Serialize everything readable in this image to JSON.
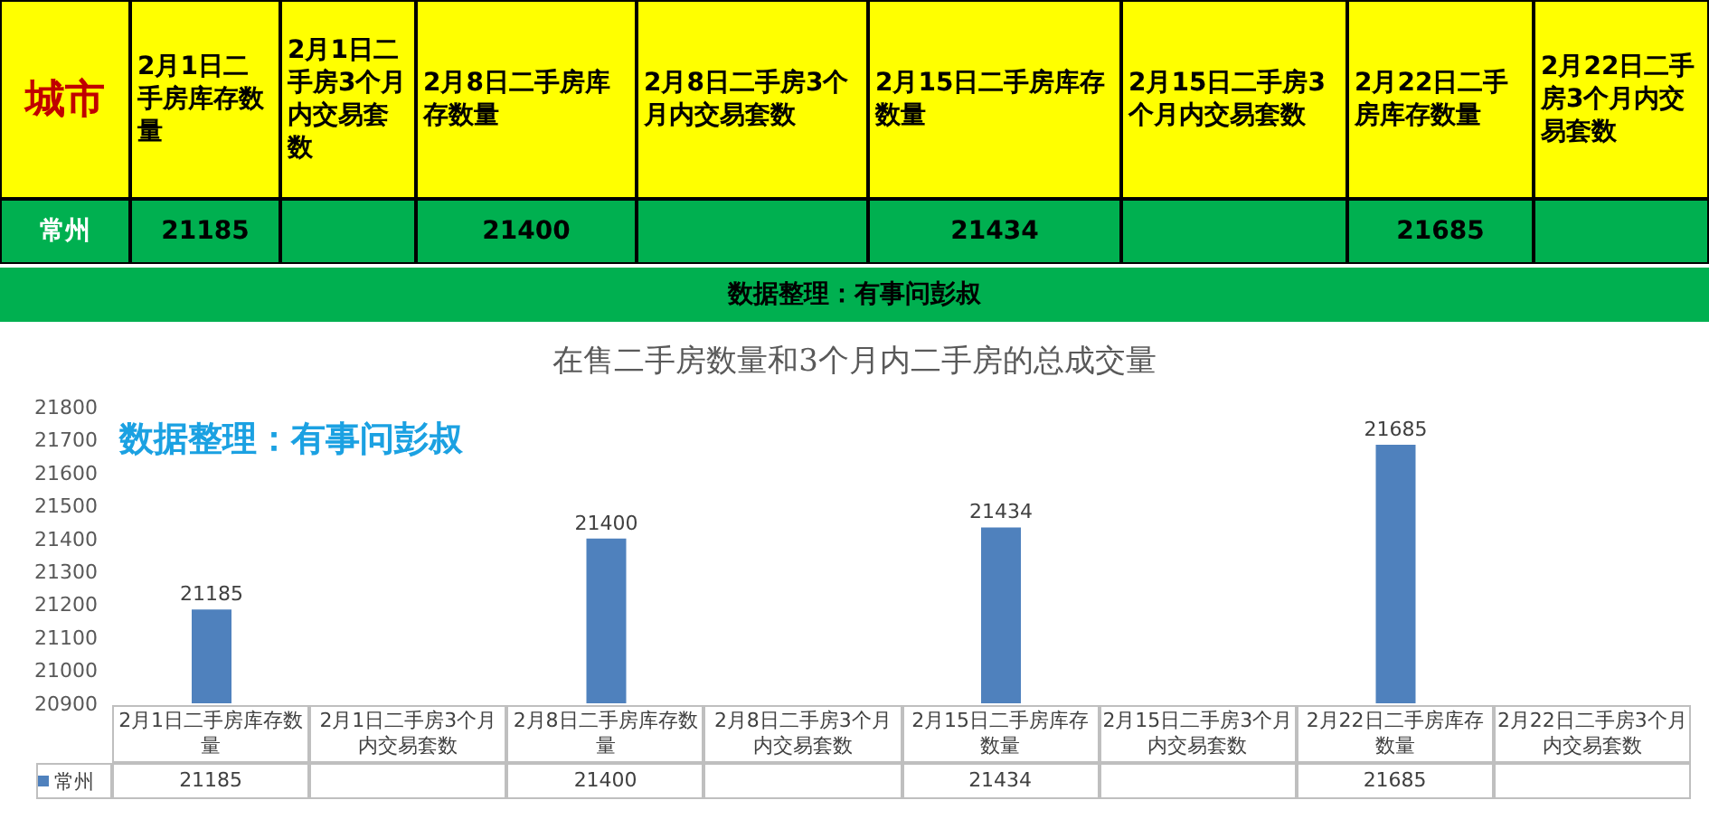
{
  "chart_data": {
    "type": "bar",
    "title": "在售二手房数量和3个月内二手房的总成交量",
    "categories": [
      "2月1日二手房库存数量",
      "2月1日二手房3个月内交易套数",
      "2月8日二手房库存数量",
      "2月8日二手房3个月内交易套数",
      "2月15日二手房库存数量",
      "2月15日二手房3个月内交易套数",
      "2月22日二手房库存数量",
      "2月22日二手房3个月内交易套数"
    ],
    "series": [
      {
        "name": "常州",
        "color": "#4f81bd",
        "values": [
          21185,
          null,
          21400,
          null,
          21434,
          null,
          21685,
          null
        ],
        "value_labels": [
          "21185",
          null,
          "21400",
          null,
          "21434",
          null,
          "21685",
          null
        ]
      }
    ],
    "ylim": [
      20900,
      21800
    ],
    "yticks": [
      20900,
      21000,
      21100,
      21200,
      21300,
      21400,
      21500,
      21600,
      21700,
      21800
    ],
    "legend": "bottom",
    "annotations": [
      "城市",
      "数据整理：有事问彭叔",
      "数据整理：有事问彭叔"
    ]
  }
}
